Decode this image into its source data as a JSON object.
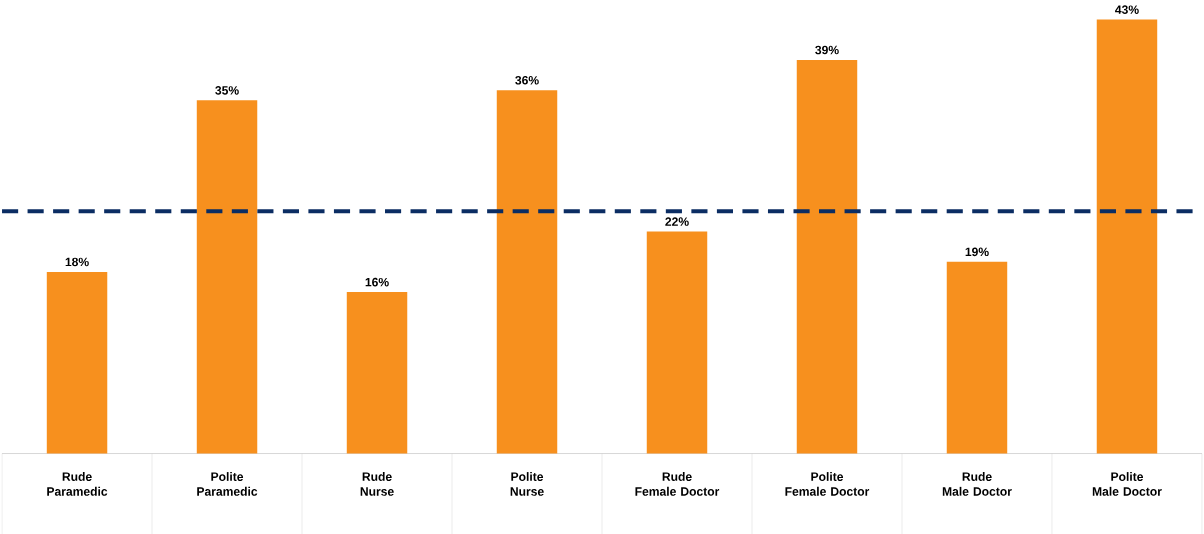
{
  "chart_data": {
    "type": "bar",
    "categories": [
      "Rude\nParamedic",
      "Polite\nParamedic",
      "Rude\nNurse",
      "Polite\nNurse",
      "Rude\nFemale Doctor",
      "Polite\nFemale Doctor",
      "Rude\nMale Doctor",
      "Polite\nMale Doctor"
    ],
    "values": [
      18,
      35,
      16,
      36,
      22,
      39,
      19,
      43
    ],
    "value_labels": [
      "18%",
      "35%",
      "16%",
      "36%",
      "22%",
      "39%",
      "19%",
      "43%"
    ],
    "color": "#f7901e",
    "ref_lines": [
      {
        "axis": "y",
        "value": 24,
        "color": "#0b2d63",
        "line_style": "dashed"
      }
    ]
  }
}
